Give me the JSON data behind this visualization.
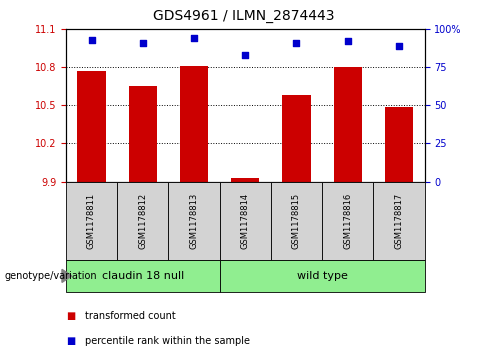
{
  "title": "GDS4961 / ILMN_2874443",
  "samples": [
    "GSM1178811",
    "GSM1178812",
    "GSM1178813",
    "GSM1178814",
    "GSM1178815",
    "GSM1178816",
    "GSM1178817"
  ],
  "transformed_counts": [
    10.77,
    10.65,
    10.81,
    9.93,
    10.58,
    10.8,
    10.49
  ],
  "percentile_ranks": [
    93,
    91,
    94,
    83,
    91,
    92,
    89
  ],
  "ylim_left": [
    9.9,
    11.1
  ],
  "ylim_right": [
    0,
    100
  ],
  "yticks_left": [
    9.9,
    10.2,
    10.5,
    10.8,
    11.1
  ],
  "yticks_right": [
    0,
    25,
    50,
    75,
    100
  ],
  "ytick_labels_left": [
    "9.9",
    "10.2",
    "10.5",
    "10.8",
    "11.1"
  ],
  "ytick_labels_right": [
    "0",
    "25",
    "50",
    "75",
    "100%"
  ],
  "bar_color": "#cc0000",
  "dot_color": "#0000cc",
  "gridline_values": [
    10.2,
    10.5,
    10.8
  ],
  "groups": [
    {
      "label": "claudin 18 null",
      "indices": [
        0,
        1,
        2
      ]
    },
    {
      "label": "wild type",
      "indices": [
        3,
        4,
        5,
        6
      ]
    }
  ],
  "group_label_prefix": "genotype/variation",
  "legend_bar_label": "transformed count",
  "legend_dot_label": "percentile rank within the sample",
  "bg_color_samples": "#d3d3d3",
  "bg_color_groups": "#90ee90",
  "title_fontsize": 10,
  "axis_fontsize": 7,
  "sample_fontsize": 6,
  "group_fontsize": 8,
  "legend_fontsize": 7
}
